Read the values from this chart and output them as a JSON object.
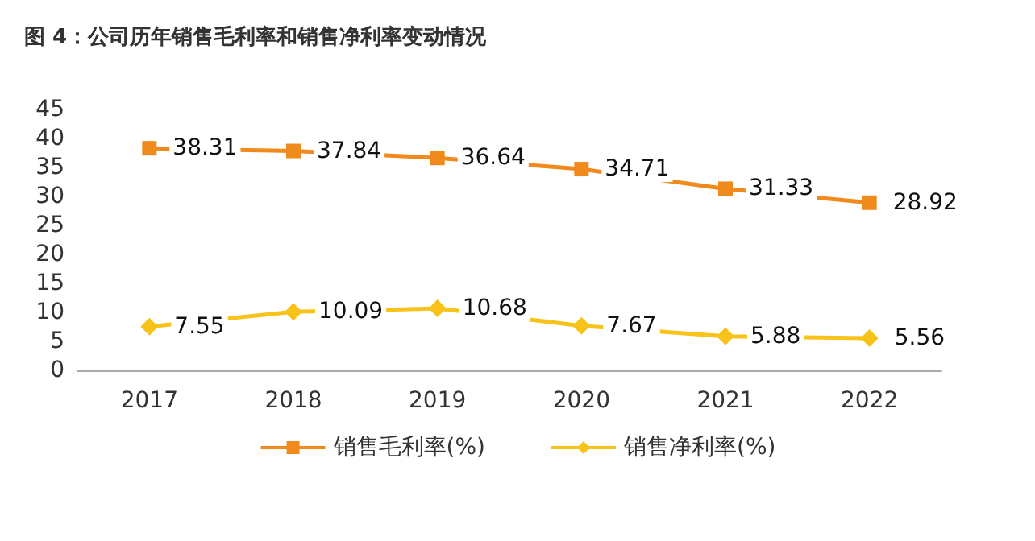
{
  "chart_data": {
    "type": "line",
    "title": "图 4：公司历年销售毛利率和销售净利率变动情况",
    "categories": [
      "2017",
      "2018",
      "2019",
      "2020",
      "2021",
      "2022"
    ],
    "series": [
      {
        "name": "销售毛利率(%)",
        "color": "#f08a1c",
        "marker": "square",
        "values": [
          38.31,
          37.84,
          36.64,
          34.71,
          31.33,
          28.92
        ]
      },
      {
        "name": "销售净利率(%)",
        "color": "#f7c21a",
        "marker": "diamond",
        "values": [
          7.55,
          10.09,
          10.68,
          7.67,
          5.88,
          5.56
        ]
      }
    ],
    "ylim": [
      0,
      45
    ],
    "yticks": [
      0,
      5,
      10,
      15,
      20,
      25,
      30,
      35,
      40,
      45
    ],
    "grid": false,
    "legend": "bottom",
    "data_labels": true
  }
}
